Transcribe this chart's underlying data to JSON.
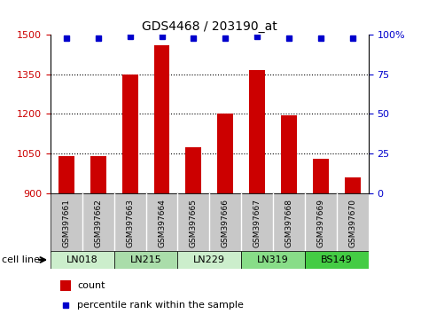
{
  "title": "GDS4468 / 203190_at",
  "samples": [
    "GSM397661",
    "GSM397662",
    "GSM397663",
    "GSM397664",
    "GSM397665",
    "GSM397666",
    "GSM397667",
    "GSM397668",
    "GSM397669",
    "GSM397670"
  ],
  "counts": [
    1040,
    1040,
    1350,
    1460,
    1075,
    1200,
    1365,
    1195,
    1030,
    960
  ],
  "percentile_ranks": [
    98,
    98,
    99,
    99,
    98,
    98,
    99,
    98,
    98,
    98
  ],
  "cell_lines": [
    {
      "name": "LN018",
      "samples": [
        0,
        1
      ],
      "color": "#cceecc"
    },
    {
      "name": "LN215",
      "samples": [
        2,
        3
      ],
      "color": "#aaddaa"
    },
    {
      "name": "LN229",
      "samples": [
        4,
        5
      ],
      "color": "#cceecc"
    },
    {
      "name": "LN319",
      "samples": [
        6,
        7
      ],
      "color": "#88dd88"
    },
    {
      "name": "BS149",
      "samples": [
        8,
        9
      ],
      "color": "#44cc44"
    }
  ],
  "ylim": [
    900,
    1500
  ],
  "yticks": [
    900,
    1050,
    1200,
    1350,
    1500
  ],
  "right_yticks": [
    0,
    25,
    50,
    75,
    100
  ],
  "right_ylim": [
    0,
    100
  ],
  "bar_color": "#cc0000",
  "dot_color": "#0000cc",
  "bar_width": 0.5,
  "sample_bg_color": "#c8c8c8",
  "legend_items": [
    {
      "label": "count",
      "color": "#cc0000"
    },
    {
      "label": "percentile rank within the sample",
      "color": "#0000cc"
    }
  ]
}
